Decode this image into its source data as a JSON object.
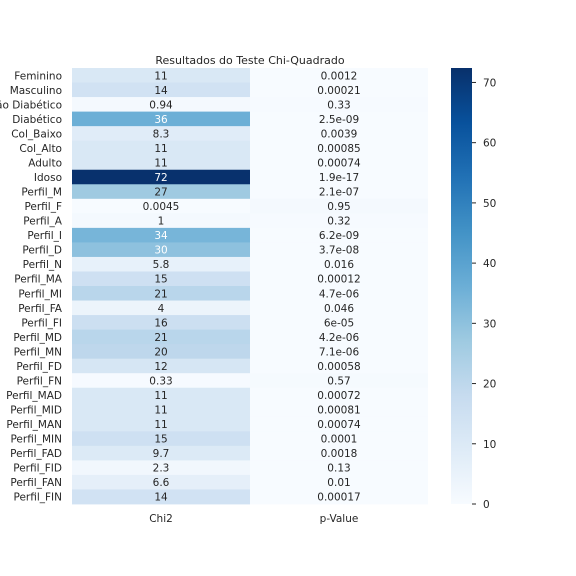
{
  "chart_data": {
    "type": "heatmap",
    "title": "Resultados do Teste Chi-Quadrado",
    "columns": [
      "Chi2",
      "p-Value"
    ],
    "rows": [
      "Feminino",
      "Masculino",
      "Não Diabético",
      "Diabético",
      "Col_Baixo",
      "Col_Alto",
      "Adulto",
      "Idoso",
      "Perfil_M",
      "Perfil_F",
      "Perfil_A",
      "Perfil_I",
      "Perfil_D",
      "Perfil_N",
      "Perfil_MA",
      "Perfil_MI",
      "Perfil_FA",
      "Perfil_FI",
      "Perfil_MD",
      "Perfil_MN",
      "Perfil_FD",
      "Perfil_FN",
      "Perfil_MAD",
      "Perfil_MID",
      "Perfil_MAN",
      "Perfil_MIN",
      "Perfil_FAD",
      "Perfil_FID",
      "Perfil_FAN",
      "Perfil_FIN"
    ],
    "chi2": [
      11,
      14,
      0.94,
      36,
      8.3,
      11,
      11,
      72,
      27,
      0.0045,
      1,
      34,
      30,
      5.8,
      15,
      21,
      4,
      16,
      21,
      20,
      12,
      0.33,
      11,
      11,
      11,
      15,
      9.7,
      2.3,
      6.6,
      14
    ],
    "chi2_labels": [
      "11",
      "14",
      "0.94",
      "36",
      "8.3",
      "11",
      "11",
      "72",
      "27",
      "0.0045",
      "1",
      "34",
      "30",
      "5.8",
      "15",
      "21",
      "4",
      "16",
      "21",
      "20",
      "12",
      "0.33",
      "11",
      "11",
      "11",
      "15",
      "9.7",
      "2.3",
      "6.6",
      "14"
    ],
    "p_value": [
      0.0012,
      0.00021,
      0.33,
      2.5e-09,
      0.0039,
      0.00085,
      0.00074,
      1.9e-17,
      2.1e-07,
      0.95,
      0.32,
      6.2e-09,
      3.7e-08,
      0.016,
      0.00012,
      4.7e-06,
      0.046,
      6e-05,
      4.2e-06,
      7.1e-06,
      0.00058,
      0.57,
      0.00072,
      0.00081,
      0.00074,
      0.0001,
      0.0018,
      0.13,
      0.01,
      0.00017
    ],
    "p_value_labels": [
      "0.0012",
      "0.00021",
      "0.33",
      "2.5e-09",
      "0.0039",
      "0.00085",
      "0.00074",
      "1.9e-17",
      "2.1e-07",
      "0.95",
      "0.32",
      "6.2e-09",
      "3.7e-08",
      "0.016",
      "0.00012",
      "4.7e-06",
      "0.046",
      "6e-05",
      "4.2e-06",
      "7.1e-06",
      "0.00058",
      "0.57",
      "0.00072",
      "0.00081",
      "0.00074",
      "0.0001",
      "0.0018",
      "0.13",
      "0.01",
      "0.00017"
    ],
    "colormap": "Blues",
    "colorbar": {
      "min": 0,
      "max": 72.4,
      "ticks": [
        0,
        10,
        20,
        30,
        40,
        50,
        60,
        70
      ]
    },
    "annotate_light_color": "#ffffff",
    "annotate_dark_color": "#262626"
  }
}
